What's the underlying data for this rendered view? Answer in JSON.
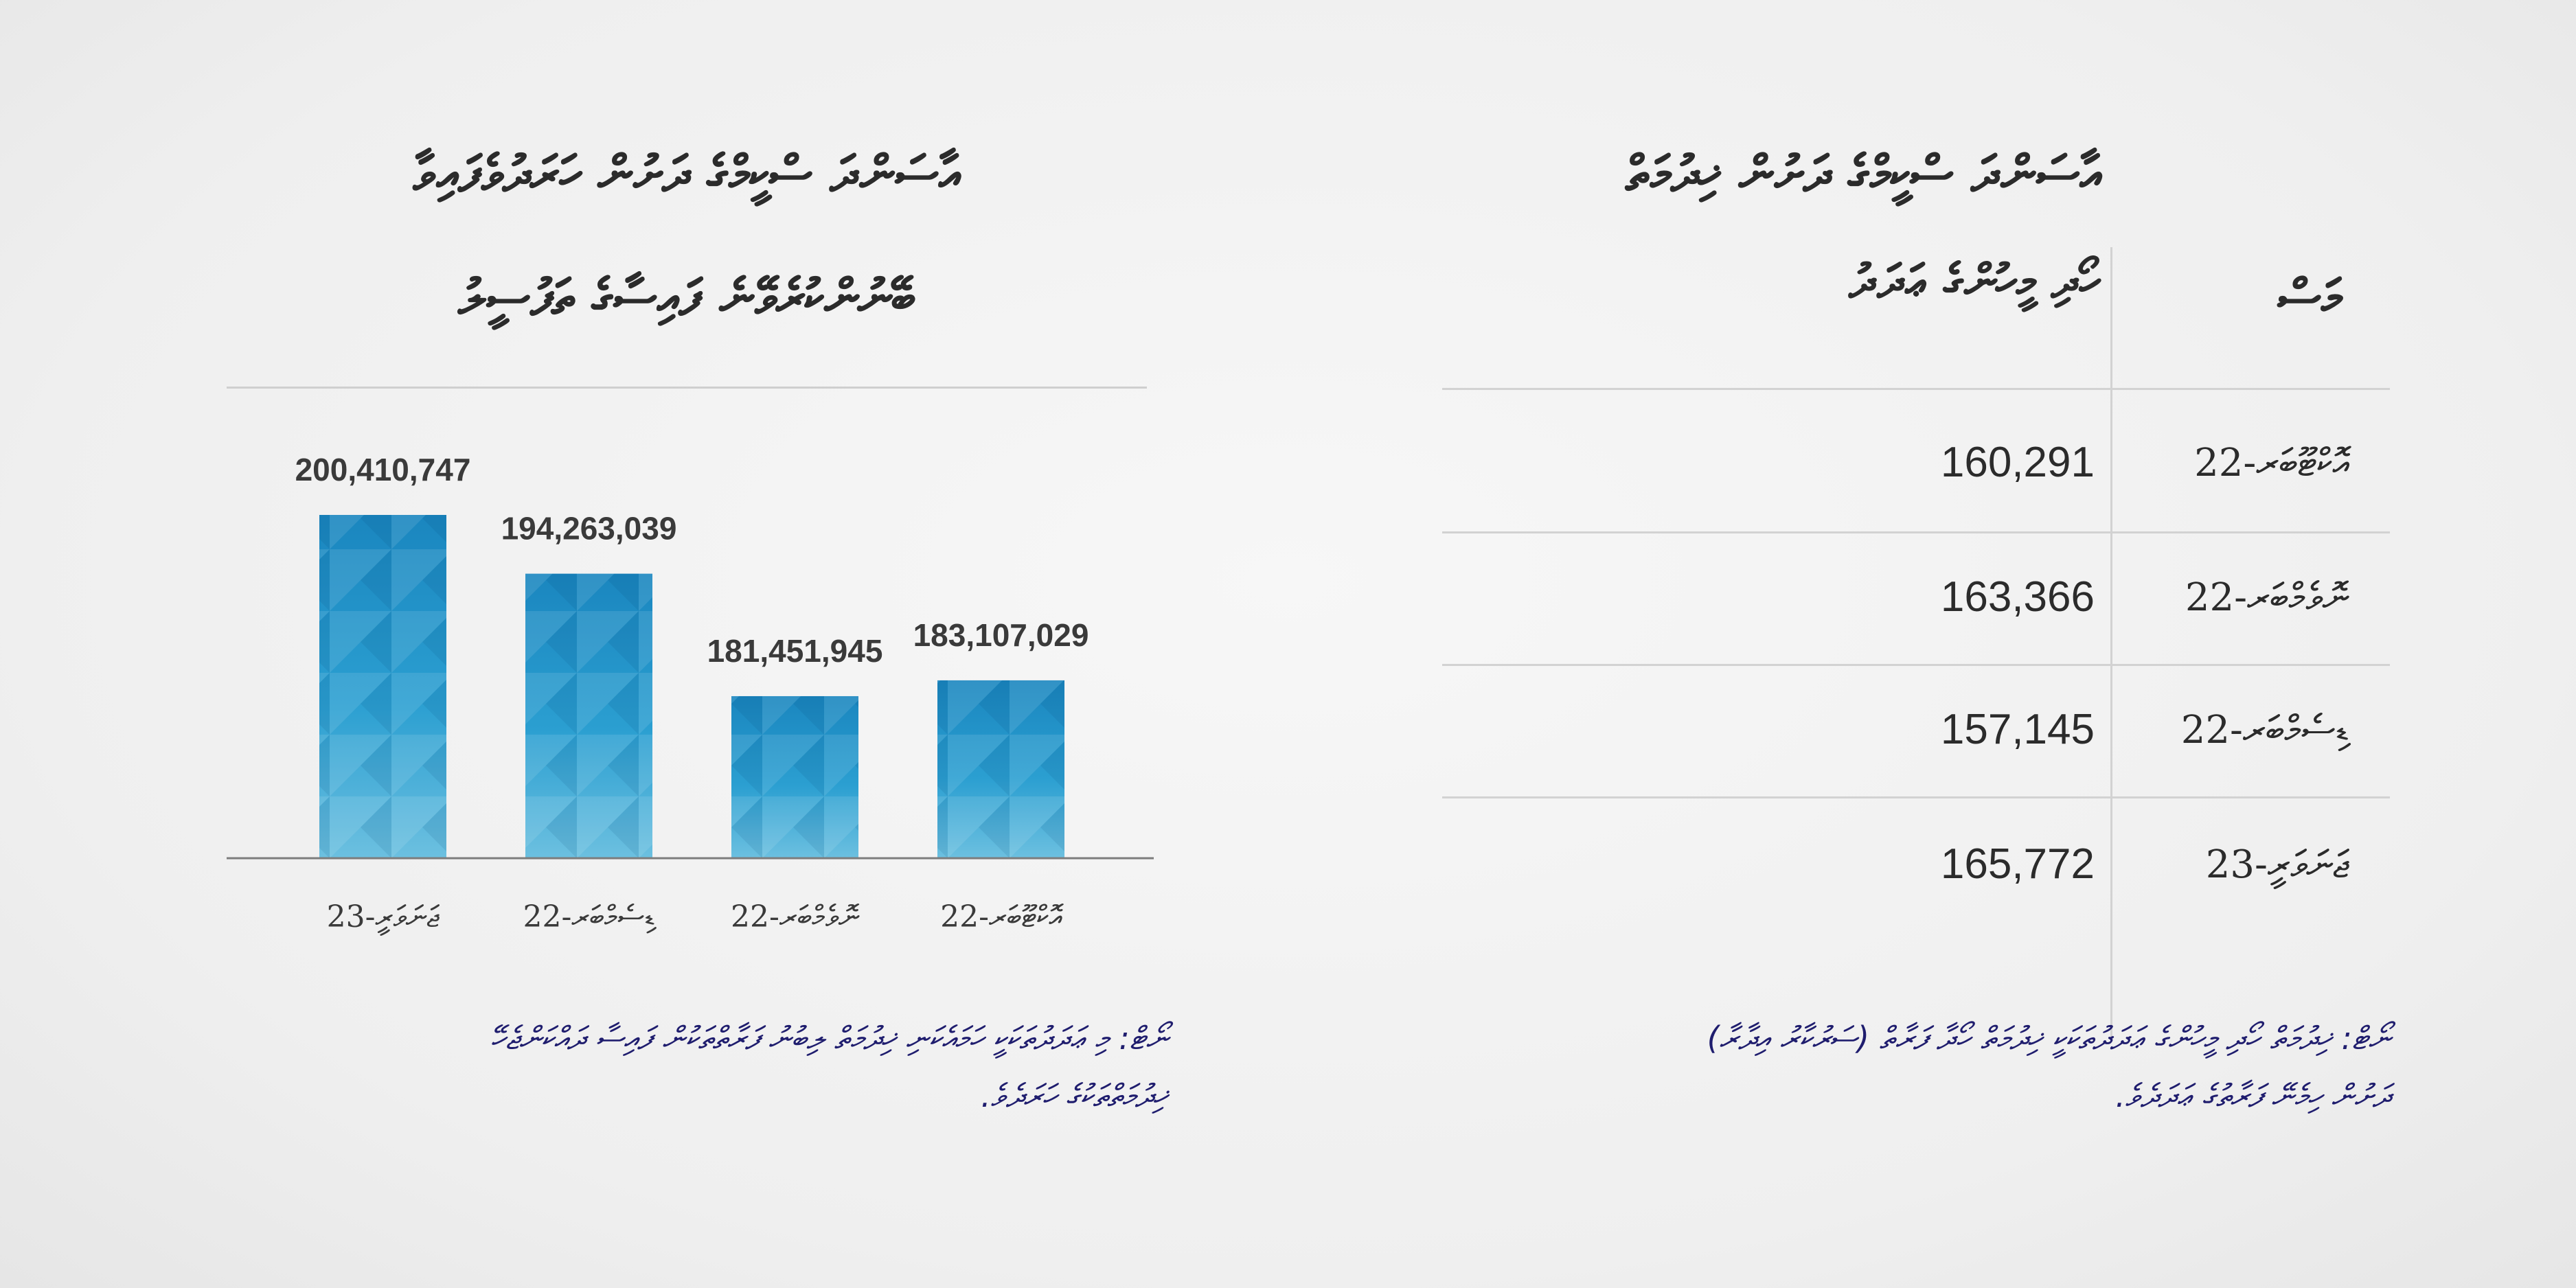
{
  "chart_panel": {
    "title_line_1": "އާސަންދަ ސްކީމްގެ ދަށުން ހަރަދުވެފައިވާ",
    "title_line_2": "ބޭނުންކުރެވޭނެ ފައިސާގެ ތަފުސީލު"
  },
  "chart_data": {
    "type": "bar",
    "categories": [
      "ޖަނަވަރީ-23",
      "ޑިސެމްބަރ-22",
      "ނޮވެމްބަރ-22",
      "އޮކްޓޫބަރ-22"
    ],
    "values": [
      200410747,
      194263039,
      181451945,
      183107029
    ],
    "value_labels": [
      "200,410,747",
      "194,263,039",
      "181,451,945",
      "183,107,029"
    ],
    "bar_color": "#1f8ac0"
  },
  "chart_note": {
    "line_1": "ނޯޓް: މި ޢަދަދުތަކަކީ ހަމައެކަނި ޚިދުމަތް ލިބުނު ފަރާތްތަކުން ފައިސާ ދައްކަންޖެހޭ",
    "line_2": "ޚިދުމަތްތަކުގެ ހަރަދެވެ."
  },
  "table_panel": {
    "value_header_line_1": "އާސަންދަ ސްކީމްގެ ދަށުން ޚިދުމަތް",
    "value_header_line_2": "ހޯދި މީހުންގެ ޢަދަދު",
    "month_header": "މަސް",
    "rows": [
      {
        "value": "160,291",
        "month": "އޮކްޓޫބަރ-22"
      },
      {
        "value": "163,366",
        "month": "ނޮވެމްބަރ-22"
      },
      {
        "value": "157,145",
        "month": "ޑިސެމްބަރ-22"
      },
      {
        "value": "165,772",
        "month": "ޖަނަވަރީ-23"
      }
    ]
  },
  "table_note": {
    "line_1": "ނޯޓް: ޚިދުމަތް ހޯދި މީހުންގެ ޢަދަދުތަކަކީ ޚިދުމަތް ހޯދާ ފަރާތް (ސަރުކާރު އިދާރާ)",
    "line_2": "ދަށުން ހިމެނޭ ފަރާތުގެ ޢަދަދެވެ."
  }
}
